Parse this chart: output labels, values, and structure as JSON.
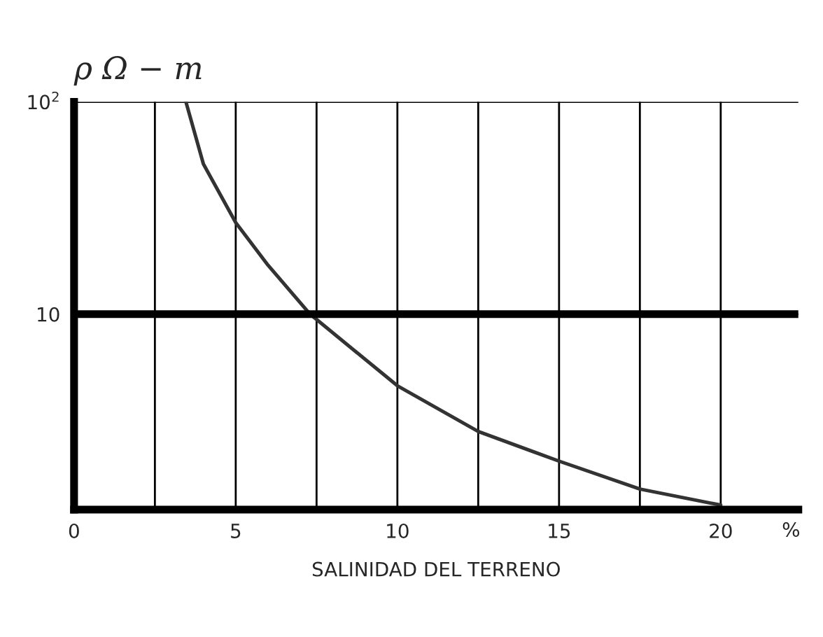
{
  "chart_data": {
    "type": "line",
    "ylabel": "ρ Ω − m",
    "xlabel": "SALINIDAD DEL TERRENO",
    "x": [
      3.46,
      4.0,
      5.0,
      6.0,
      7.3,
      10.0,
      12.5,
      15.0,
      17.5,
      20.0
    ],
    "series": [
      {
        "color": "#333333",
        "values": [
          100,
          51,
          27,
          17,
          10,
          4.6,
          2.8,
          2.03,
          1.5,
          1.26
        ]
      }
    ],
    "xlim": [
      0,
      22.4
    ],
    "xticks": [
      0,
      {
        "value": 2.5,
        "label": null
      },
      5,
      {
        "value": 7.5,
        "label": null
      },
      10,
      {
        "value": 12.5,
        "label": null
      },
      15,
      {
        "value": 17.5,
        "label": null
      },
      20
    ],
    "ylim": [
      1.2,
      100
    ],
    "yticks": [
      10,
      {
        "value": 100,
        "label": "10$^{2}$"
      }
    ],
    "log": true,
    "grid": true,
    "ref_lines": [
      {
        "axis": "y",
        "value": 10,
        "label": null,
        "color": "#000000"
      }
    ],
    "annotations": [
      "%"
    ],
    "marker": "none",
    "line_style": "solid",
    "legend": false
  }
}
